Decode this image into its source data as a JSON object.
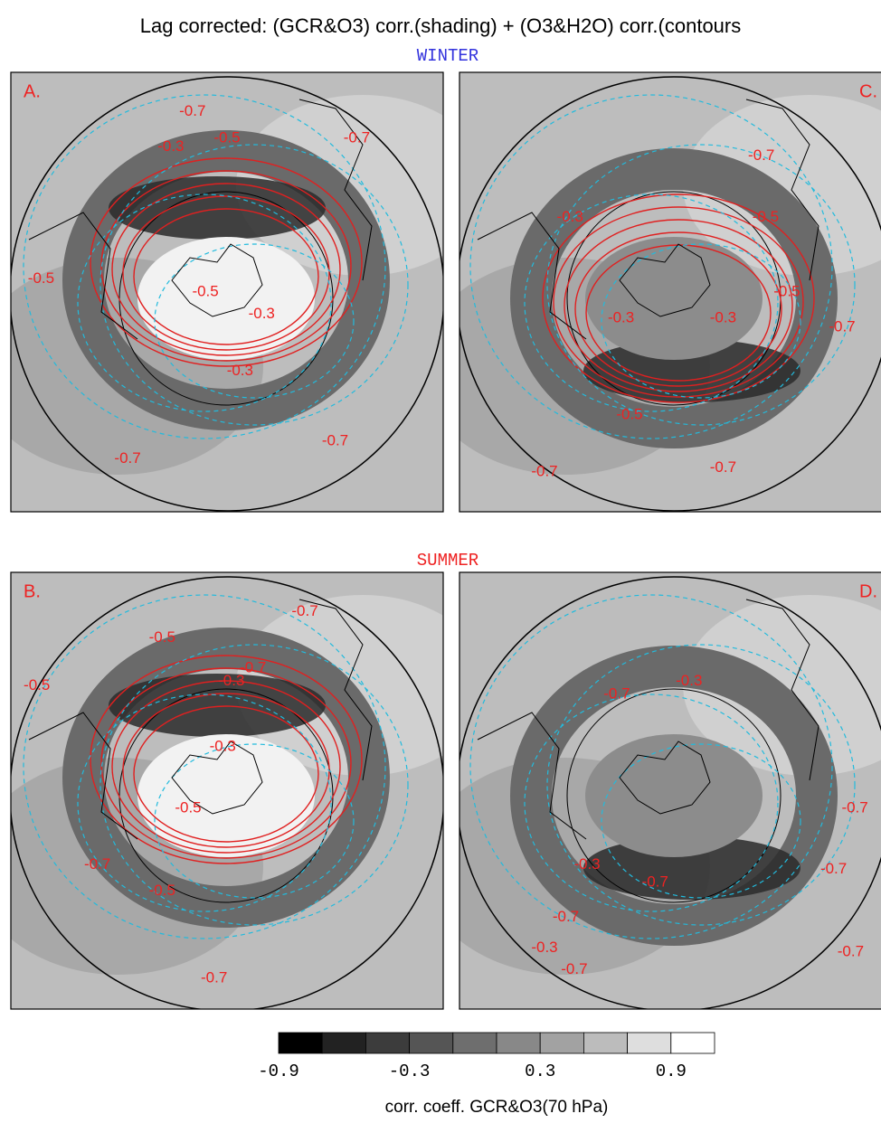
{
  "title": "Lag corrected: (GCR&O3) corr.(shading) + (O3&H2O) corr.(contours",
  "sections": [
    {
      "label": "WINTER",
      "panels": [
        {
          "label": "A.",
          "contour_labels": [
            "-0.7",
            "-0.5",
            "-0.3",
            "-0.7",
            "-0.5",
            "-0.3",
            "-0.5",
            "-0.7",
            "-0.7",
            "-0.3"
          ]
        },
        {
          "label": "C.",
          "contour_labels": [
            "-0.7",
            "-0.5",
            "-0.3",
            "-0.3",
            "-0.5",
            "-0.3",
            "-0.5",
            "-0.7",
            "-0.7",
            "-0.7"
          ]
        }
      ]
    },
    {
      "label": "SUMMER",
      "panels": [
        {
          "label": "B.",
          "contour_labels": [
            "-0.7",
            "-0.5",
            "-0.5",
            "-0.3",
            "-0.7",
            "-0.3",
            "-0.5",
            "-0.7",
            "-0.5",
            "-0.7"
          ]
        },
        {
          "label": "D.",
          "contour_labels": [
            "-0.7",
            "-0.3",
            "-0.7",
            "-0.3",
            "-0.7",
            "-0.7",
            "-0.3",
            "-0.7",
            "-0.7",
            "-0.7"
          ]
        }
      ]
    }
  ],
  "colorbar": {
    "ticks": [
      "-0.9",
      "-0.3",
      "0.3",
      "0.9"
    ],
    "label": "corr. coeff. GCR&O3(70 hPa)"
  }
}
